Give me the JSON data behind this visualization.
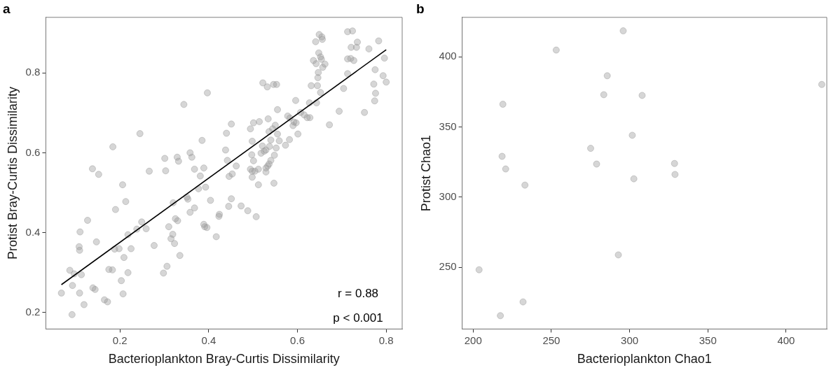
{
  "chart_data": [
    {
      "type": "scatter",
      "title": "a",
      "xlabel": "Bacterioplankton Bray-Curtis Dissimilarity",
      "ylabel": "Protist Bray-Curtis Dissimilarity",
      "xlim": [
        0.033,
        0.836
      ],
      "ylim": [
        0.159,
        0.939
      ],
      "xticks": [
        0.2,
        0.4,
        0.6,
        0.8
      ],
      "yticks": [
        0.2,
        0.4,
        0.6,
        0.8
      ],
      "grid": false,
      "marker": "circle",
      "annotations": [
        "r = 0.88",
        "p < 0.001"
      ],
      "series": [
        {
          "color": "#999999",
          "x": [
            0.397,
            0.344,
            0.245,
            0.184,
            0.385,
            0.358,
            0.329,
            0.362,
            0.332,
            0.301,
            0.138,
            0.152,
            0.266,
            0.303,
            0.368,
            0.389,
            0.381,
            0.206,
            0.393,
            0.377,
            0.213,
            0.32,
            0.351,
            0.353,
            0.404,
            0.19,
            0.368,
            0.358,
            0.424,
            0.423,
            0.127,
            0.325,
            0.33,
            0.249,
            0.11,
            0.238,
            0.259,
            0.389,
            0.391,
            0.396,
            0.31,
            0.218,
            0.319,
            0.147,
            0.315,
            0.323,
            0.417,
            0.108,
            0.109,
            0.188,
            0.198,
            0.225,
            0.277,
            0.209,
            0.335,
            0.087,
            0.097,
            0.113,
            0.175,
            0.183,
            0.306,
            0.298,
            0.218,
            0.203,
            0.093,
            0.139,
            0.144,
            0.068,
            0.109,
            0.207,
            0.165,
            0.172,
            0.119,
            0.092,
            0.649,
            0.655,
            0.656,
            0.641,
            0.713,
            0.724,
            0.735,
            0.721,
            0.733,
            0.761,
            0.783,
            0.648,
            0.652,
            0.654,
            0.636,
            0.642,
            0.662,
            0.657,
            0.647,
            0.646,
            0.713,
            0.72,
            0.727,
            0.796,
            0.713,
            0.775,
            0.793,
            0.772,
            0.8,
            0.704,
            0.776,
            0.774,
            0.522,
            0.532,
            0.546,
            0.553,
            0.631,
            0.645,
            0.652,
            0.596,
            0.627,
            0.643,
            0.694,
            0.751,
            0.672,
            0.555,
            0.578,
            0.583,
            0.607,
            0.615,
            0.622,
            0.628,
            0.592,
            0.597,
            0.59,
            0.601,
            0.534,
            0.514,
            0.501,
            0.494,
            0.451,
            0.44,
            0.55,
            0.544,
            0.536,
            0.555,
            0.54,
            0.559,
            0.573,
            0.582,
            0.552,
            0.521,
            0.529,
            0.525,
            0.518,
            0.537,
            0.498,
            0.497,
            0.501,
            0.548,
            0.54,
            0.536,
            0.533,
            0.529,
            0.529,
            0.512,
            0.494,
            0.498,
            0.504,
            0.498,
            0.512,
            0.547,
            0.438,
            0.442,
            0.462,
            0.446,
            0.453,
            0.451,
            0.445,
            0.473,
            0.488,
            0.507
          ],
          "values": [
            0.75,
            0.721,
            0.648,
            0.615,
            0.631,
            0.6,
            0.589,
            0.589,
            0.579,
            0.586,
            0.56,
            0.546,
            0.554,
            0.555,
            0.559,
            0.562,
            0.542,
            0.52,
            0.514,
            0.51,
            0.478,
            0.475,
            0.489,
            0.484,
            0.481,
            0.458,
            0.462,
            0.451,
            0.446,
            0.441,
            0.431,
            0.435,
            0.43,
            0.427,
            0.402,
            0.409,
            0.41,
            0.421,
            0.415,
            0.413,
            0.415,
            0.395,
            0.396,
            0.377,
            0.385,
            0.373,
            0.39,
            0.365,
            0.356,
            0.359,
            0.36,
            0.36,
            0.368,
            0.338,
            0.343,
            0.306,
            0.297,
            0.295,
            0.308,
            0.307,
            0.316,
            0.299,
            0.3,
            0.28,
            0.268,
            0.262,
            0.258,
            0.249,
            0.249,
            0.247,
            0.232,
            0.227,
            0.22,
            0.195,
            0.896,
            0.89,
            0.884,
            0.878,
            0.903,
            0.905,
            0.877,
            0.864,
            0.864,
            0.86,
            0.88,
            0.85,
            0.84,
            0.834,
            0.831,
            0.823,
            0.822,
            0.814,
            0.801,
            0.788,
            0.835,
            0.836,
            0.831,
            0.837,
            0.798,
            0.808,
            0.793,
            0.772,
            0.777,
            0.761,
            0.749,
            0.73,
            0.775,
            0.765,
            0.771,
            0.771,
            0.768,
            0.768,
            0.751,
            0.731,
            0.725,
            0.725,
            0.704,
            0.701,
            0.67,
            0.708,
            0.692,
            0.687,
            0.701,
            0.695,
            0.688,
            0.688,
            0.677,
            0.675,
            0.668,
            0.647,
            0.685,
            0.678,
            0.675,
            0.66,
            0.672,
            0.649,
            0.669,
            0.66,
            0.653,
            0.647,
            0.632,
            0.63,
            0.619,
            0.633,
            0.612,
            0.617,
            0.607,
            0.604,
            0.599,
            0.616,
            0.629,
            0.595,
            0.58,
            0.594,
            0.581,
            0.572,
            0.567,
            0.562,
            0.552,
            0.559,
            0.559,
            0.554,
            0.554,
            0.539,
            0.52,
            0.524,
            0.607,
            0.581,
            0.567,
            0.541,
            0.547,
            0.485,
            0.466,
            0.467,
            0.455,
            0.44
          ]
        },
        {
          "type": "line",
          "color": "#000000",
          "marker": "none",
          "x": [
            0.068,
            0.8
          ],
          "values": [
            0.27,
            0.858
          ]
        }
      ]
    },
    {
      "type": "scatter",
      "title": "b",
      "xlabel": "Bacterioplankton Chao1",
      "ylabel": "Protist Chao1",
      "xlim": [
        193,
        426
      ],
      "ylim": [
        206,
        428
      ],
      "xticks": [
        200,
        250,
        300,
        350,
        400
      ],
      "yticks": [
        250,
        300,
        350,
        400
      ],
      "grid": false,
      "marker": "circle",
      "series": [
        {
          "color": "#999999",
          "x": [
            295.9,
            253.1,
            285.7,
            283.5,
            308.0,
            219.0,
            301.7,
            275.1,
            218.5,
            278.9,
            328.7,
            220.8,
            329.0,
            302.7,
            233.1,
            292.8,
            203.8,
            231.9,
            217.4,
            422.8
          ],
          "values": [
            418.4,
            404.7,
            386.4,
            372.9,
            372.4,
            366.1,
            344.0,
            334.7,
            329.0,
            323.5,
            323.9,
            320.0,
            316.1,
            313.0,
            308.5,
            258.8,
            248.2,
            225.3,
            215.5,
            380.2
          ]
        }
      ]
    }
  ]
}
